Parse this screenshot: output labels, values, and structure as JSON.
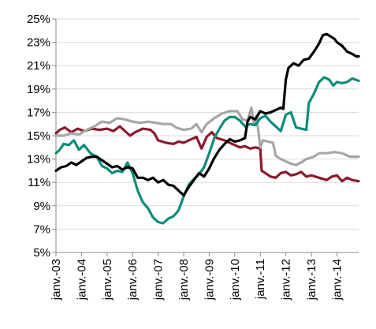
{
  "chart_data": {
    "type": "line",
    "title": "",
    "xlabel": "",
    "ylabel": "",
    "ylim": [
      5,
      25
    ],
    "xlim": [
      2003.0,
      2014.85
    ],
    "y_unit": "%",
    "y_ticks": [
      5,
      7,
      9,
      11,
      13,
      15,
      17,
      19,
      21,
      23,
      25
    ],
    "y_tick_labels": [
      "5%",
      "7%",
      "9%",
      "11%",
      "13%",
      "15%",
      "17%",
      "19%",
      "21%",
      "23%",
      "25%"
    ],
    "x_ticks": [
      2003,
      2004,
      2005,
      2006,
      2007,
      2008,
      2009,
      2010,
      2011,
      2012,
      2013,
      2014
    ],
    "x_tick_labels": [
      "janv.-03",
      "janv.-04",
      "janv.-05",
      "janv.-06",
      "janv.-07",
      "janv.-08",
      "janv.-09",
      "janv.-10",
      "janv.-11",
      "janv.-12",
      "janv.-13",
      "janv.-14"
    ],
    "grid": "horizontal",
    "legend": "none",
    "series": [
      {
        "color": "#8B1A2B",
        "points": [
          [
            2003.0,
            15.2
          ],
          [
            2003.15,
            15.5
          ],
          [
            2003.35,
            15.7
          ],
          [
            2003.6,
            15.3
          ],
          [
            2003.85,
            15.6
          ],
          [
            2004.1,
            15.4
          ],
          [
            2004.4,
            15.6
          ],
          [
            2004.7,
            15.5
          ],
          [
            2005.0,
            15.6
          ],
          [
            2005.25,
            15.4
          ],
          [
            2005.5,
            15.8
          ],
          [
            2005.7,
            15.4
          ],
          [
            2005.9,
            15.0
          ],
          [
            2006.1,
            15.3
          ],
          [
            2006.4,
            15.6
          ],
          [
            2006.7,
            15.5
          ],
          [
            2006.85,
            15.2
          ],
          [
            2007.0,
            14.6
          ],
          [
            2007.3,
            14.4
          ],
          [
            2007.6,
            14.3
          ],
          [
            2007.8,
            14.5
          ],
          [
            2008.0,
            14.4
          ],
          [
            2008.3,
            14.7
          ],
          [
            2008.5,
            14.9
          ],
          [
            2008.7,
            13.9
          ],
          [
            2008.9,
            14.9
          ],
          [
            2009.1,
            15.3
          ],
          [
            2009.3,
            14.8
          ],
          [
            2009.6,
            14.6
          ],
          [
            2009.9,
            14.3
          ],
          [
            2010.2,
            14.0
          ],
          [
            2010.4,
            14.1
          ],
          [
            2010.6,
            13.9
          ],
          [
            2010.8,
            14.0
          ],
          [
            2011.0,
            13.9
          ],
          [
            2011.05,
            12.0
          ],
          [
            2011.2,
            11.8
          ],
          [
            2011.4,
            11.5
          ],
          [
            2011.6,
            11.4
          ],
          [
            2011.8,
            11.8
          ],
          [
            2012.0,
            11.9
          ],
          [
            2012.2,
            11.6
          ],
          [
            2012.4,
            11.7
          ],
          [
            2012.6,
            11.9
          ],
          [
            2012.8,
            11.5
          ],
          [
            2013.0,
            11.6
          ],
          [
            2013.3,
            11.4
          ],
          [
            2013.6,
            11.2
          ],
          [
            2013.8,
            11.5
          ],
          [
            2014.0,
            11.6
          ],
          [
            2014.2,
            11.1
          ],
          [
            2014.4,
            11.4
          ],
          [
            2014.6,
            11.2
          ],
          [
            2014.85,
            11.1
          ]
        ]
      },
      {
        "color": "#A6A6A6",
        "points": [
          [
            2003.0,
            15.0
          ],
          [
            2003.3,
            15.0
          ],
          [
            2003.6,
            15.2
          ],
          [
            2003.9,
            15.1
          ],
          [
            2004.2,
            15.5
          ],
          [
            2004.5,
            15.8
          ],
          [
            2004.8,
            16.2
          ],
          [
            2005.1,
            16.1
          ],
          [
            2005.4,
            16.5
          ],
          [
            2005.7,
            16.4
          ],
          [
            2006.0,
            16.2
          ],
          [
            2006.3,
            16.1
          ],
          [
            2006.6,
            16.2
          ],
          [
            2006.9,
            16.1
          ],
          [
            2007.2,
            16.0
          ],
          [
            2007.5,
            16.0
          ],
          [
            2007.7,
            15.7
          ],
          [
            2008.0,
            15.5
          ],
          [
            2008.3,
            15.6
          ],
          [
            2008.5,
            16.0
          ],
          [
            2008.7,
            15.3
          ],
          [
            2008.9,
            16.0
          ],
          [
            2009.2,
            16.5
          ],
          [
            2009.5,
            16.9
          ],
          [
            2009.8,
            17.1
          ],
          [
            2010.1,
            17.1
          ],
          [
            2010.3,
            16.4
          ],
          [
            2010.5,
            16.3
          ],
          [
            2010.65,
            17.4
          ],
          [
            2010.75,
            16.0
          ],
          [
            2010.85,
            16.7
          ],
          [
            2011.0,
            14.0
          ],
          [
            2011.1,
            14.6
          ],
          [
            2011.3,
            14.5
          ],
          [
            2011.5,
            14.4
          ],
          [
            2011.6,
            13.3
          ],
          [
            2011.8,
            13.0
          ],
          [
            2012.0,
            12.8
          ],
          [
            2012.2,
            12.6
          ],
          [
            2012.4,
            12.5
          ],
          [
            2012.6,
            12.7
          ],
          [
            2012.8,
            13.0
          ],
          [
            2013.1,
            13.2
          ],
          [
            2013.3,
            13.5
          ],
          [
            2013.6,
            13.5
          ],
          [
            2013.9,
            13.6
          ],
          [
            2014.2,
            13.5
          ],
          [
            2014.5,
            13.2
          ],
          [
            2014.85,
            13.2
          ]
        ]
      },
      {
        "color": "#0E8C7A",
        "points": [
          [
            2003.0,
            13.5
          ],
          [
            2003.15,
            13.8
          ],
          [
            2003.3,
            14.3
          ],
          [
            2003.5,
            14.2
          ],
          [
            2003.7,
            14.6
          ],
          [
            2003.9,
            13.8
          ],
          [
            2004.1,
            14.2
          ],
          [
            2004.35,
            13.5
          ],
          [
            2004.6,
            13.2
          ],
          [
            2004.8,
            12.4
          ],
          [
            2005.0,
            12.2
          ],
          [
            2005.2,
            11.8
          ],
          [
            2005.4,
            12.0
          ],
          [
            2005.6,
            11.9
          ],
          [
            2005.8,
            12.7
          ],
          [
            2006.0,
            11.8
          ],
          [
            2006.2,
            10.3
          ],
          [
            2006.4,
            9.3
          ],
          [
            2006.6,
            8.8
          ],
          [
            2006.8,
            8.0
          ],
          [
            2007.0,
            7.6
          ],
          [
            2007.2,
            7.5
          ],
          [
            2007.4,
            7.9
          ],
          [
            2007.6,
            8.1
          ],
          [
            2007.8,
            8.6
          ],
          [
            2008.0,
            9.8
          ],
          [
            2008.2,
            10.8
          ],
          [
            2008.4,
            11.3
          ],
          [
            2008.6,
            11.7
          ],
          [
            2008.8,
            12.3
          ],
          [
            2009.0,
            13.5
          ],
          [
            2009.2,
            14.8
          ],
          [
            2009.4,
            15.6
          ],
          [
            2009.6,
            16.3
          ],
          [
            2009.8,
            16.6
          ],
          [
            2010.0,
            16.6
          ],
          [
            2010.2,
            16.3
          ],
          [
            2010.4,
            15.8
          ],
          [
            2010.6,
            16.0
          ],
          [
            2010.8,
            15.9
          ],
          [
            2011.0,
            16.5
          ],
          [
            2011.2,
            16.7
          ],
          [
            2011.4,
            16.2
          ],
          [
            2011.6,
            15.8
          ],
          [
            2011.8,
            15.4
          ],
          [
            2012.0,
            16.8
          ],
          [
            2012.2,
            17.0
          ],
          [
            2012.4,
            15.7
          ],
          [
            2012.6,
            15.6
          ],
          [
            2012.8,
            15.5
          ],
          [
            2012.9,
            17.8
          ],
          [
            2013.1,
            18.6
          ],
          [
            2013.3,
            19.6
          ],
          [
            2013.5,
            20.0
          ],
          [
            2013.7,
            19.8
          ],
          [
            2013.85,
            19.3
          ],
          [
            2014.0,
            19.6
          ],
          [
            2014.2,
            19.5
          ],
          [
            2014.4,
            19.6
          ],
          [
            2014.6,
            19.9
          ],
          [
            2014.85,
            19.7
          ]
        ]
      },
      {
        "color": "#000000",
        "points": [
          [
            2003.0,
            12.0
          ],
          [
            2003.2,
            12.3
          ],
          [
            2003.4,
            12.4
          ],
          [
            2003.6,
            12.7
          ],
          [
            2003.8,
            12.5
          ],
          [
            2004.0,
            12.8
          ],
          [
            2004.2,
            13.1
          ],
          [
            2004.4,
            13.2
          ],
          [
            2004.6,
            13.2
          ],
          [
            2004.8,
            12.9
          ],
          [
            2005.0,
            12.6
          ],
          [
            2005.2,
            12.3
          ],
          [
            2005.4,
            12.4
          ],
          [
            2005.6,
            12.1
          ],
          [
            2005.8,
            12.3
          ],
          [
            2006.0,
            12.2
          ],
          [
            2006.2,
            11.4
          ],
          [
            2006.4,
            11.4
          ],
          [
            2006.6,
            11.2
          ],
          [
            2006.8,
            11.4
          ],
          [
            2007.0,
            11.0
          ],
          [
            2007.2,
            11.2
          ],
          [
            2007.4,
            10.8
          ],
          [
            2007.6,
            10.7
          ],
          [
            2007.8,
            10.3
          ],
          [
            2008.0,
            9.9
          ],
          [
            2008.2,
            10.6
          ],
          [
            2008.4,
            11.2
          ],
          [
            2008.6,
            11.8
          ],
          [
            2008.8,
            11.5
          ],
          [
            2009.0,
            12.2
          ],
          [
            2009.2,
            13.1
          ],
          [
            2009.4,
            13.8
          ],
          [
            2009.6,
            14.3
          ],
          [
            2009.8,
            14.7
          ],
          [
            2010.0,
            14.5
          ],
          [
            2010.2,
            14.6
          ],
          [
            2010.4,
            14.8
          ],
          [
            2010.5,
            16.2
          ],
          [
            2010.6,
            16.6
          ],
          [
            2010.8,
            16.4
          ],
          [
            2011.0,
            17.1
          ],
          [
            2011.2,
            16.9
          ],
          [
            2011.4,
            17.0
          ],
          [
            2011.6,
            17.2
          ],
          [
            2011.8,
            17.4
          ],
          [
            2011.9,
            17.3
          ],
          [
            2012.0,
            19.8
          ],
          [
            2012.1,
            20.8
          ],
          [
            2012.3,
            21.2
          ],
          [
            2012.5,
            21.0
          ],
          [
            2012.7,
            21.5
          ],
          [
            2012.9,
            21.6
          ],
          [
            2013.1,
            22.2
          ],
          [
            2013.3,
            22.9
          ],
          [
            2013.45,
            23.6
          ],
          [
            2013.6,
            23.7
          ],
          [
            2013.75,
            23.5
          ],
          [
            2013.9,
            23.3
          ],
          [
            2014.0,
            23.0
          ],
          [
            2014.2,
            22.7
          ],
          [
            2014.4,
            22.2
          ],
          [
            2014.6,
            22.0
          ],
          [
            2014.75,
            21.8
          ],
          [
            2014.85,
            21.8
          ]
        ]
      }
    ]
  }
}
